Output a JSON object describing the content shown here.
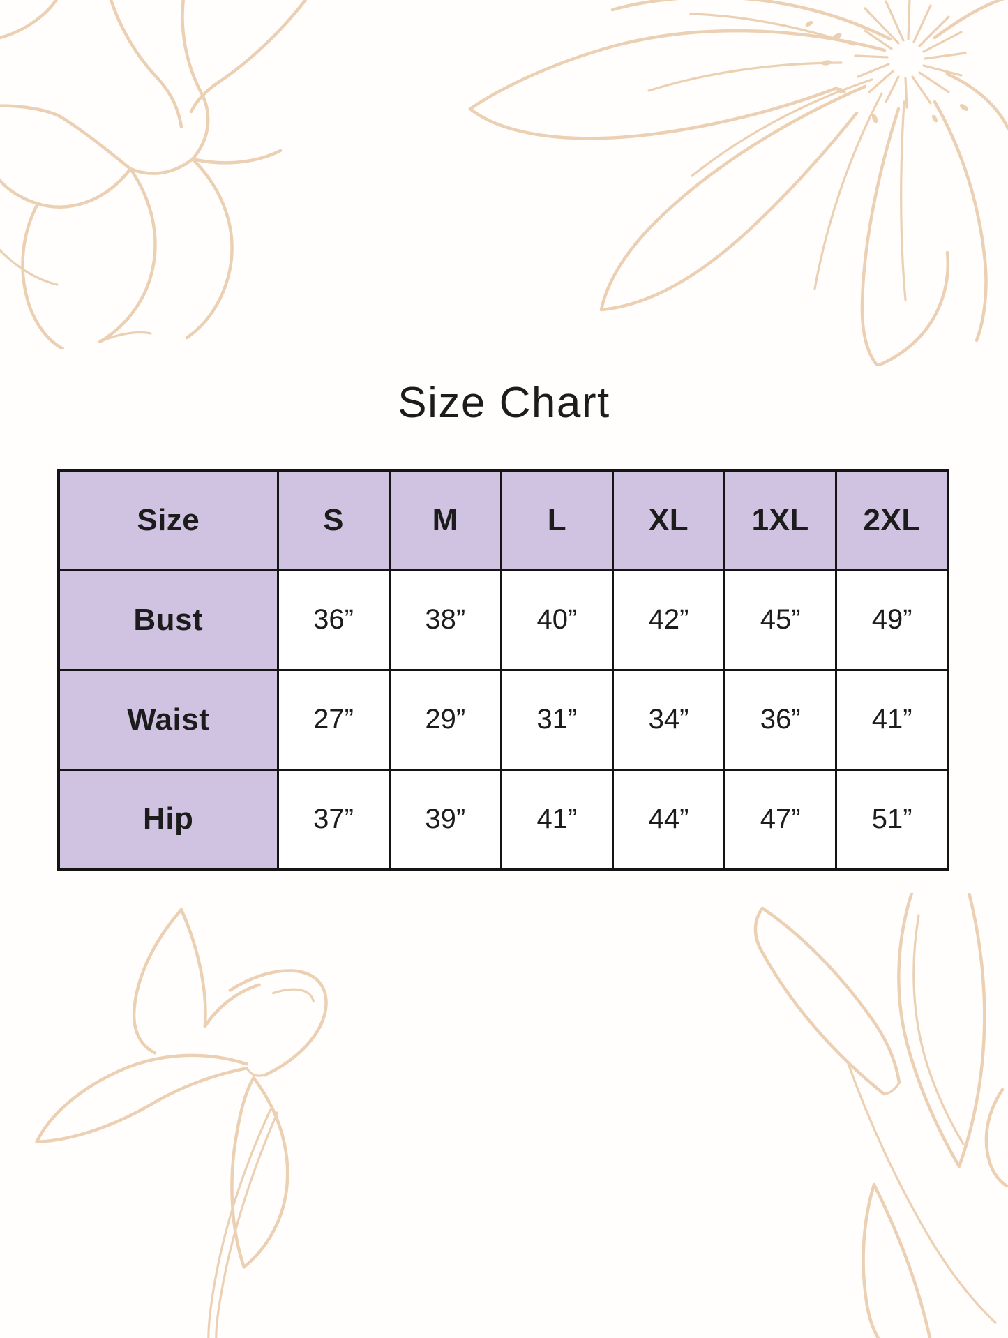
{
  "page": {
    "title": "Size Chart"
  },
  "colors": {
    "background": "#fffefc",
    "text": "#1c1c1c",
    "table_border": "#141414",
    "header_fill": "#d0c2e1",
    "flower_line": "#ecd0b4"
  },
  "size_table": {
    "columns": [
      "Size",
      "S",
      "M",
      "L",
      "XL",
      "1XL",
      "2XL"
    ],
    "rows": [
      {
        "label": "Bust",
        "values": [
          "36”",
          "38”",
          "40”",
          "42”",
          "45”",
          "49”"
        ]
      },
      {
        "label": "Waist",
        "values": [
          "27”",
          "29”",
          "31”",
          "34”",
          "36”",
          "41”"
        ]
      },
      {
        "label": "Hip",
        "values": [
          "37”",
          "39”",
          "41”",
          "44”",
          "47”",
          "51”"
        ]
      }
    ]
  }
}
